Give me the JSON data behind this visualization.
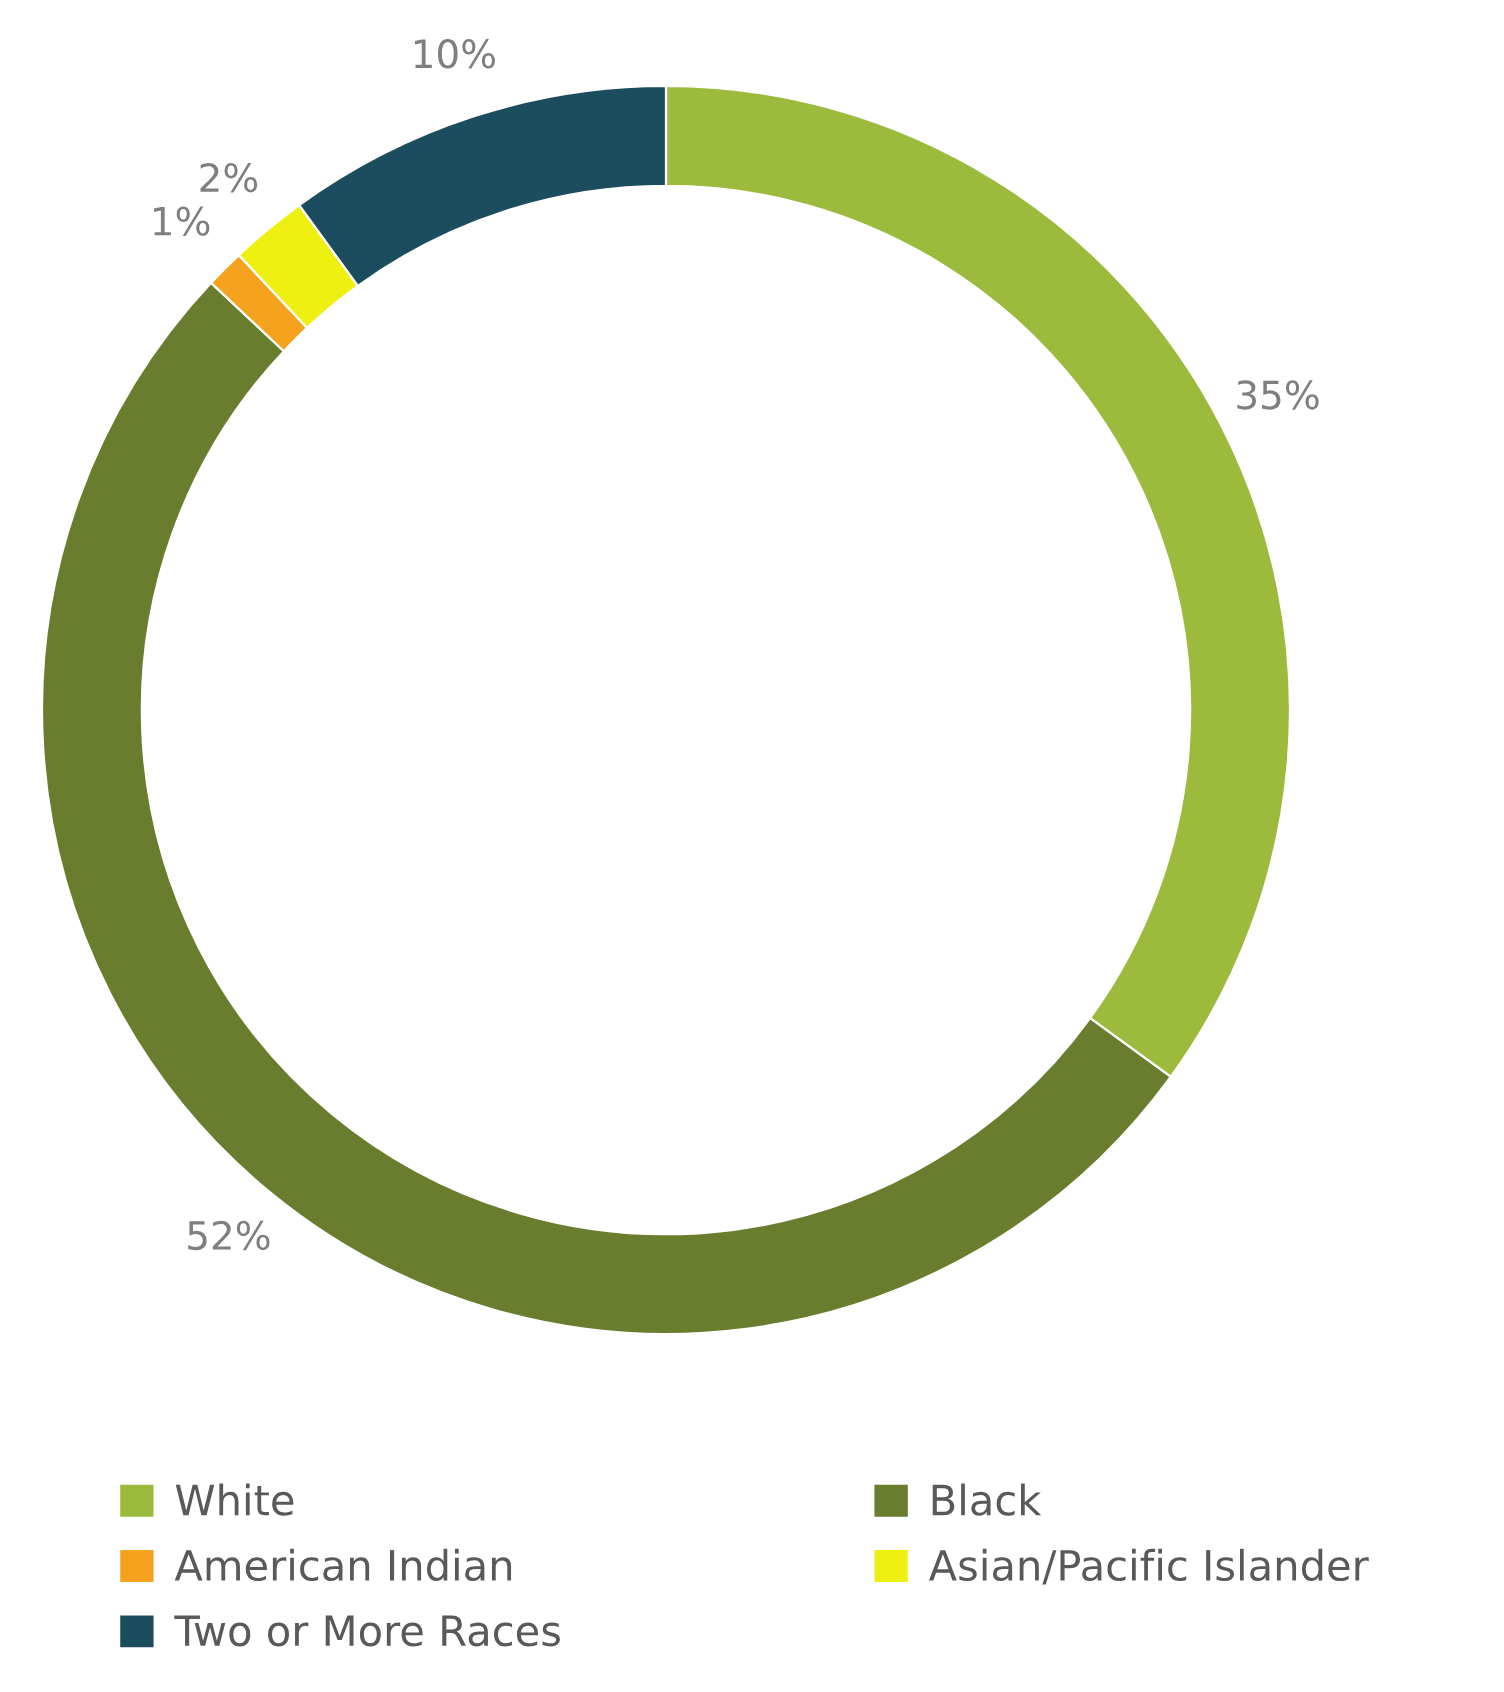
{
  "chart_data": {
    "type": "donut",
    "categories": [
      "White",
      "Black",
      "American Indian",
      "Asian/Pacific Islander",
      "Two or More Races"
    ],
    "values": [
      35,
      52,
      1,
      2,
      10
    ],
    "colors": [
      "#9cba3c",
      "#6a7d2e",
      "#f5a21e",
      "#eef012",
      "#1c4d5e"
    ],
    "value_labels": [
      "35%",
      "52%",
      "1%",
      "2%",
      "10%"
    ],
    "legend": "bottom"
  }
}
